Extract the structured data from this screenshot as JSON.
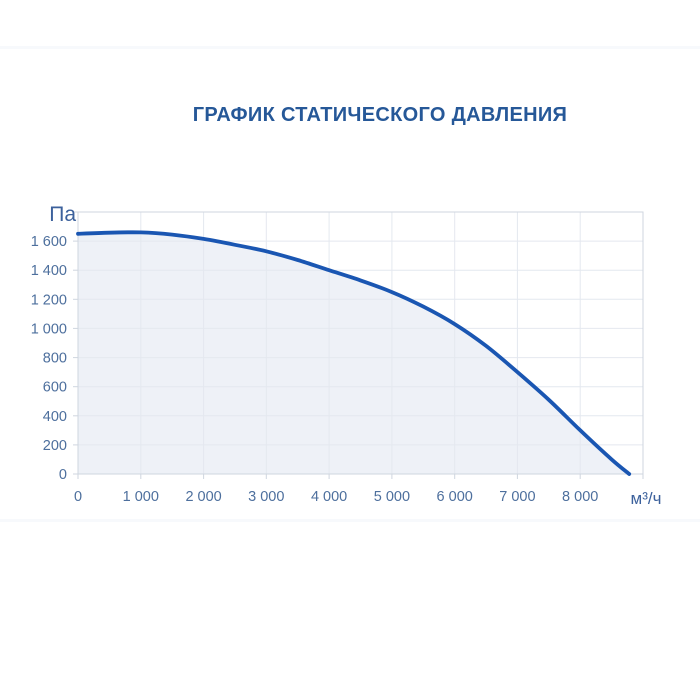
{
  "page": {
    "background": "#ffffff",
    "divider_color": "#f3f7fb"
  },
  "title": {
    "text": "ГРАФИК СТАТИЧЕСКОГО ДАВЛЕНИЯ",
    "color": "#265898"
  },
  "chart_data": {
    "type": "area",
    "title": "ГРАФИК СТАТИЧЕСКОГО ДАВЛЕНИЯ",
    "xlabel": "м³/ч",
    "ylabel": "Па",
    "xlim": [
      0,
      9000
    ],
    "ylim": [
      0,
      1800
    ],
    "grid": true,
    "legend": false,
    "x_ticks": {
      "values": [
        0,
        1000,
        2000,
        3000,
        4000,
        5000,
        6000,
        7000,
        8000
      ],
      "labels": [
        "0",
        "1 000",
        "2 000",
        "3 000",
        "4 000",
        "5 000",
        "6 000",
        "7 000",
        "8 000"
      ]
    },
    "y_ticks": {
      "values": [
        0,
        200,
        400,
        600,
        800,
        1000,
        1200,
        1400,
        1600
      ],
      "labels": [
        "0",
        "200",
        "400",
        "600",
        "800",
        "1 000",
        "1 200",
        "1 400",
        "1 600"
      ]
    },
    "points": [
      [
        0,
        1650
      ],
      [
        500,
        1658
      ],
      [
        1000,
        1660
      ],
      [
        1500,
        1645
      ],
      [
        2000,
        1615
      ],
      [
        2500,
        1575
      ],
      [
        3000,
        1530
      ],
      [
        3500,
        1470
      ],
      [
        4000,
        1400
      ],
      [
        4500,
        1330
      ],
      [
        5000,
        1250
      ],
      [
        5500,
        1150
      ],
      [
        6000,
        1030
      ],
      [
        6500,
        880
      ],
      [
        7000,
        700
      ],
      [
        7500,
        510
      ],
      [
        8000,
        300
      ],
      [
        8500,
        100
      ],
      [
        8780,
        0
      ]
    ],
    "colors": {
      "curve": "#1a56b2",
      "fill": "#eef1f7",
      "grid": "#e4e8ef",
      "frame": "#cfd6df",
      "tick_label": "#4d6f9d",
      "unit_label": "#3c619c"
    }
  }
}
